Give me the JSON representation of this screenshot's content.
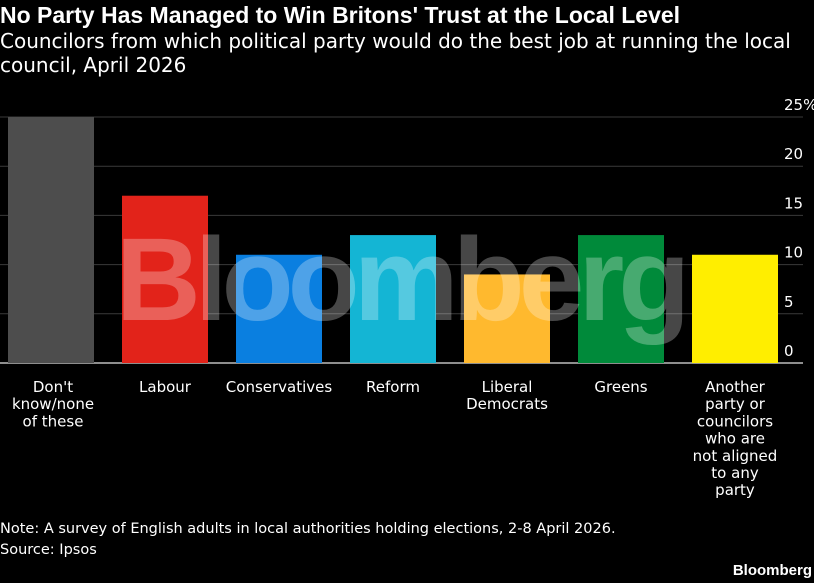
{
  "title": "No Party Has Managed to Win Britons' Trust at the Local Level",
  "subtitle": "Councilors from which political party would do the best job at running the local council, April 2026",
  "note": "Note: A survey of English adults in local authorities holding elections, 2-8 April 2026.",
  "source": "Source: Ipsos",
  "brand": "Bloomberg",
  "watermark": "Bloomberg",
  "chart_data": {
    "type": "bar",
    "categories": [
      [
        "Don't",
        "know/none",
        "of these"
      ],
      [
        "Labour"
      ],
      [
        "Conservatives"
      ],
      [
        "Reform"
      ],
      [
        "Liberal",
        "Democrats"
      ],
      [
        "Greens"
      ],
      [
        "Another",
        "party or",
        "councilors",
        "who are",
        "not aligned",
        "to any",
        "party"
      ]
    ],
    "values": [
      25,
      17,
      11,
      13,
      9,
      13,
      11
    ],
    "colors": [
      "#4d4d4d",
      "#e2231a",
      "#0a7fe0",
      "#14b5d4",
      "#ffb92e",
      "#008a3a",
      "#ffee00"
    ],
    "ylim": [
      0,
      25
    ],
    "yticks": [
      0,
      5,
      10,
      15,
      20,
      "25%"
    ],
    "grid": true
  }
}
